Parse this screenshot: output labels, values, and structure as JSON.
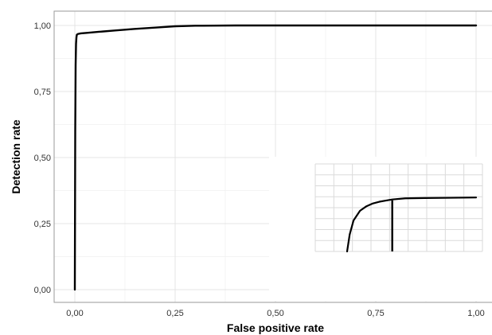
{
  "chart_data": {
    "type": "line",
    "title": "",
    "xlabel": "False positive rate",
    "ylabel": "Detection rate",
    "xlim": [
      0,
      1
    ],
    "ylim": [
      0,
      1
    ],
    "x_ticks": [
      "0,00",
      "0,25",
      "0,50",
      "0,75",
      "1,00"
    ],
    "y_ticks": [
      "0,00",
      "0,25",
      "0,50",
      "0,75",
      "1,00"
    ],
    "x_tick_values": [
      0,
      0.25,
      0.5,
      0.75,
      1
    ],
    "y_tick_values": [
      0,
      0.25,
      0.5,
      0.75,
      1
    ],
    "grid": true,
    "legend": "none",
    "series": [
      {
        "x": [
          0,
          0.001,
          0.002,
          0.003,
          0.004,
          0.005,
          0.008,
          0.015,
          0.03,
          0.06,
          0.1,
          0.15,
          0.2,
          0.25,
          0.3,
          0.4,
          0.5,
          0.75,
          1.0
        ],
        "y": [
          0,
          0.6,
          0.85,
          0.93,
          0.955,
          0.965,
          0.968,
          0.97,
          0.972,
          0.976,
          0.981,
          0.987,
          0.992,
          0.997,
          0.999,
          1.0,
          1.0,
          1.0,
          1.0
        ]
      }
    ],
    "inset": {
      "description_free": true,
      "x": [
        0,
        0.02,
        0.05,
        0.1,
        0.15,
        0.2,
        0.25,
        0.3,
        0.35,
        0.45,
        0.6,
        0.8,
        1.0
      ],
      "y": [
        0,
        0.3,
        0.55,
        0.72,
        0.8,
        0.85,
        0.88,
        0.9,
        0.92,
        0.94,
        0.945,
        0.95,
        0.955
      ],
      "marker_x": 0.35,
      "grid": true
    }
  }
}
